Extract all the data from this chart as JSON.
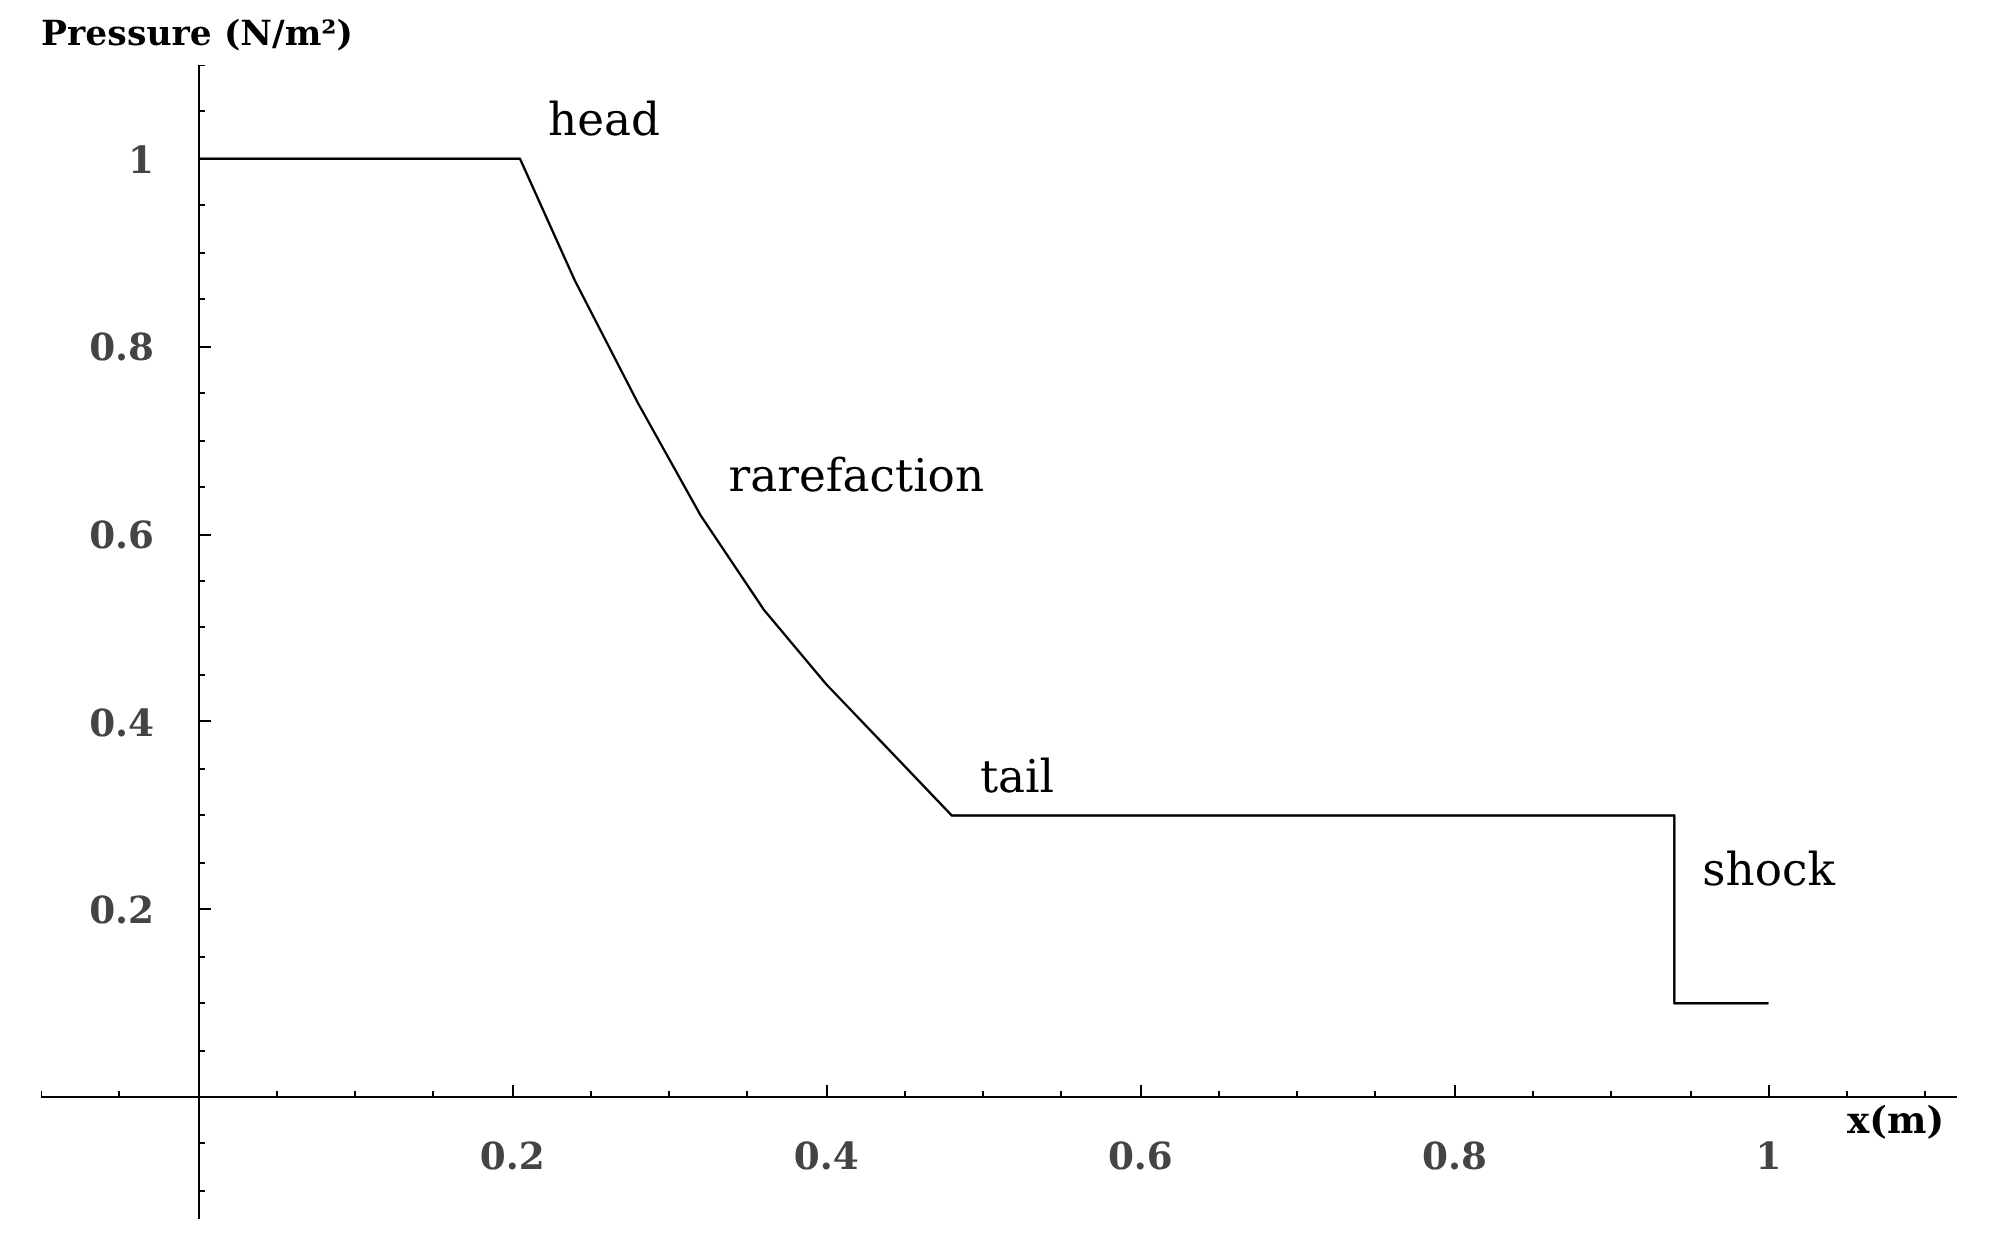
{
  "chart_data": {
    "type": "line",
    "xlabel": "x(m)",
    "ylabel": "Pressure (N/m²)",
    "x": [
      0,
      0.205,
      0.24,
      0.28,
      0.32,
      0.36,
      0.4,
      0.44,
      0.48,
      0.94,
      0.94,
      1
    ],
    "series": [
      {
        "color": "#000000",
        "values": [
          1,
          1,
          0.87,
          0.74,
          0.62,
          0.52,
          0.44,
          0.37,
          0.3,
          0.3,
          0.1,
          0.1
        ]
      }
    ],
    "xlim": [
      -0.1,
      1.12
    ],
    "ylim": [
      -0.13,
      1.1
    ],
    "xticks": [
      0.2,
      0.4,
      0.6,
      0.8,
      1
    ],
    "yticks": [
      0.2,
      0.4,
      0.6,
      0.8,
      1
    ],
    "grid": false,
    "marker": "none",
    "line_style": "solid",
    "annotations": [
      {
        "text": "head",
        "x": 0.205,
        "y": 1
      },
      {
        "text": "rarefaction",
        "x": 0.32,
        "y": 0.62
      },
      {
        "text": "tail",
        "x": 0.48,
        "y": 0.3
      },
      {
        "text": "shock",
        "x": 0.94,
        "y": 0.2
      }
    ]
  }
}
